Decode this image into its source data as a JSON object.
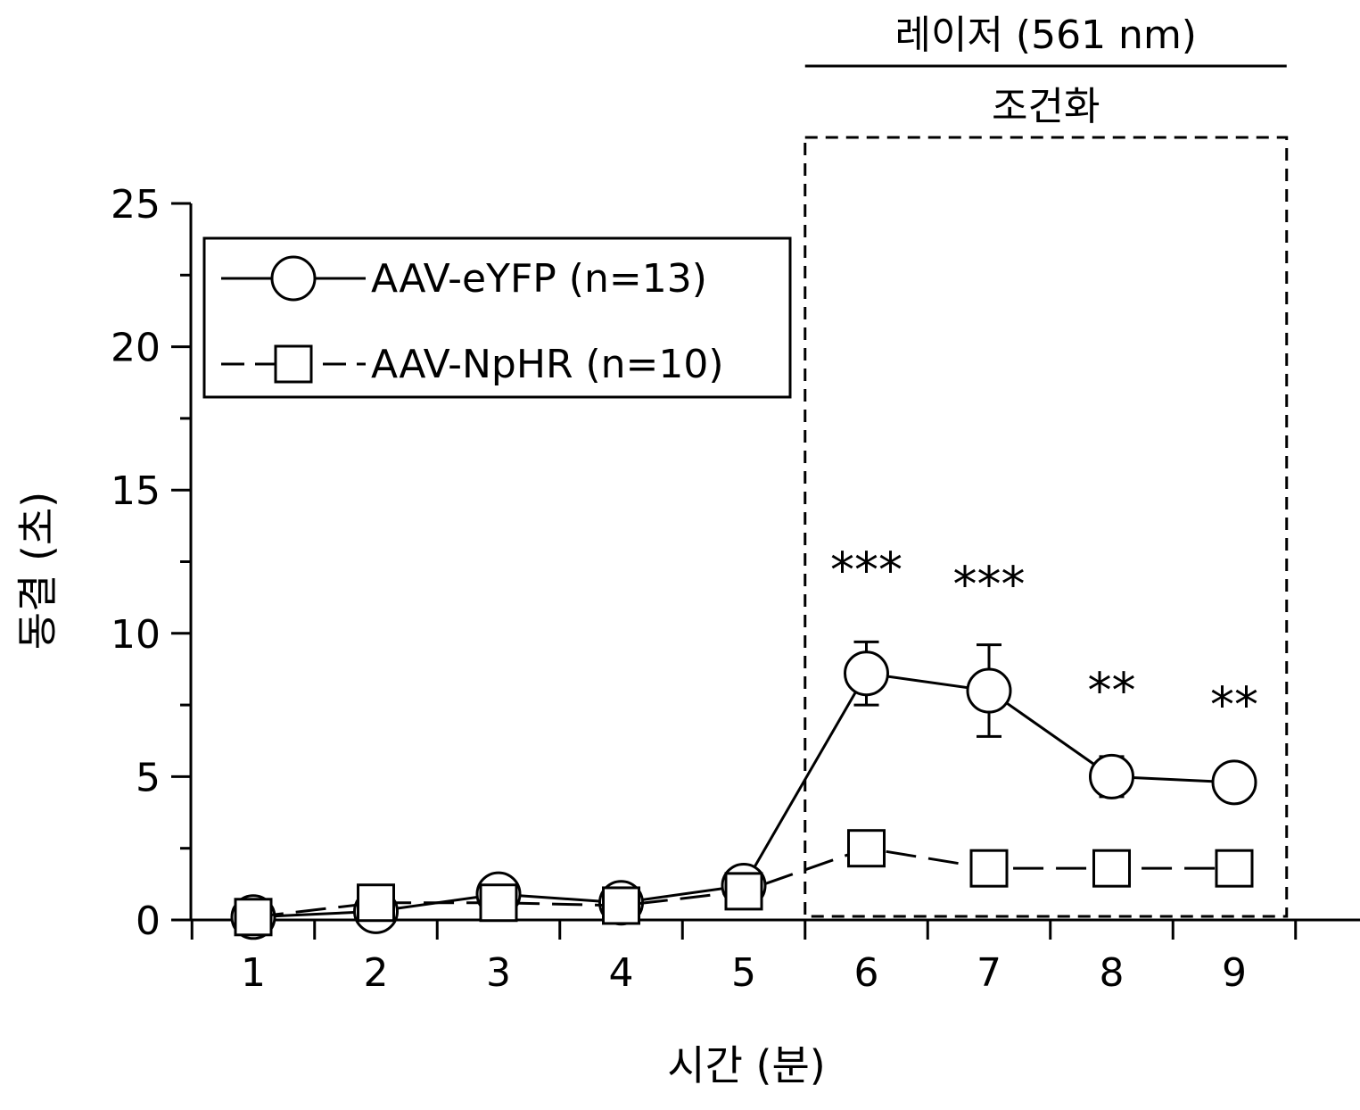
{
  "chart_data": {
    "type": "line",
    "title": "",
    "xlabel": "시간 (분)",
    "ylabel": "동결 (초)",
    "x": [
      1,
      2,
      3,
      4,
      5,
      6,
      7,
      8,
      9
    ],
    "xlim": [
      0.5,
      9.5
    ],
    "ylim": [
      0,
      25
    ],
    "yticks": [
      0,
      5,
      10,
      15,
      20,
      25
    ],
    "grid": false,
    "legend_position": "top-left",
    "series": [
      {
        "name": "AAV-eYFP  (n=13)",
        "marker": "open-circle",
        "line": "solid",
        "values": [
          0.1,
          0.3,
          0.9,
          0.6,
          1.2,
          8.6,
          8.0,
          5.0,
          4.8
        ],
        "error": [
          0,
          0,
          0,
          0,
          0,
          1.1,
          1.6,
          0.7,
          0
        ]
      },
      {
        "name": "AAV-NpHR  (n=10)",
        "marker": "open-square",
        "line": "dashed",
        "values": [
          0.1,
          0.6,
          0.6,
          0.5,
          1.0,
          2.5,
          1.8,
          1.8,
          1.8
        ],
        "error": [
          0,
          0,
          0,
          0,
          0,
          0,
          0,
          0,
          0
        ]
      }
    ],
    "annotations": [
      {
        "x": 6,
        "y": 12.5,
        "text": "***"
      },
      {
        "x": 7,
        "y": 12.0,
        "text": "***"
      },
      {
        "x": 8,
        "y": 8.3,
        "text": "**"
      },
      {
        "x": 9,
        "y": 7.8,
        "text": "**"
      }
    ],
    "laser_window": {
      "x_start": 5.5,
      "x_end": 9.5,
      "label": "레이저 (561 nm)",
      "sublabel": "조건화"
    }
  }
}
